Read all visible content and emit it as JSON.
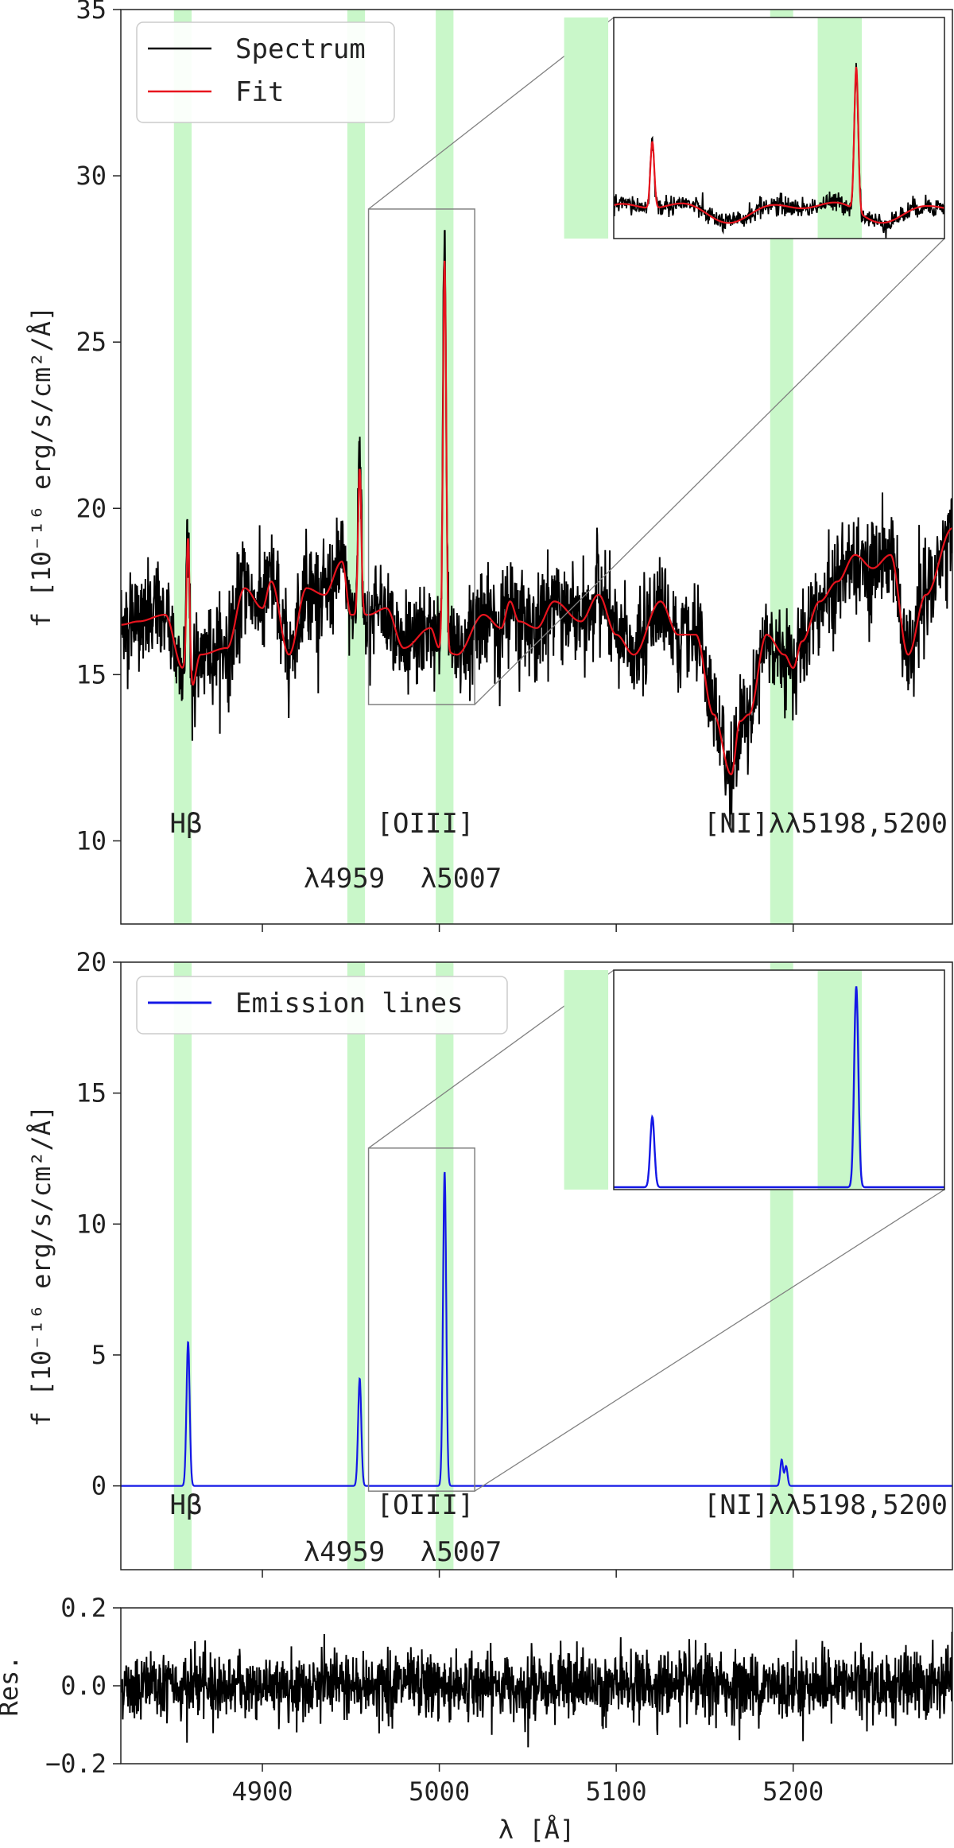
{
  "chart_data": [
    {
      "panel": "top",
      "type": "line",
      "ylabel": "f [10⁻¹⁶ erg/s/cm²/Å]",
      "ylim": [
        7.5,
        35
      ],
      "xlim": [
        4820,
        5290
      ],
      "yticks": [
        10,
        15,
        20,
        25,
        30,
        35
      ],
      "legend": {
        "placement": "top-left",
        "entries": [
          {
            "label": "Spectrum",
            "color": "#000000"
          },
          {
            "label": "Fit",
            "color": "#e8141e"
          }
        ]
      },
      "continuum_points": [
        [
          4820,
          16.5
        ],
        [
          4830,
          16.6
        ],
        [
          4845,
          16.8
        ],
        [
          4855,
          15.2
        ],
        [
          4860,
          14.6
        ],
        [
          4865,
          15.6
        ],
        [
          4880,
          15.8
        ],
        [
          4890,
          17.6
        ],
        [
          4900,
          17.0
        ],
        [
          4905,
          17.8
        ],
        [
          4915,
          15.6
        ],
        [
          4925,
          17.6
        ],
        [
          4935,
          17.4
        ],
        [
          4945,
          18.4
        ],
        [
          4950,
          16.8
        ],
        [
          4960,
          16.8
        ],
        [
          4970,
          17.0
        ],
        [
          4980,
          15.8
        ],
        [
          4995,
          16.4
        ],
        [
          5000,
          15.8
        ],
        [
          5010,
          15.6
        ],
        [
          5025,
          16.8
        ],
        [
          5035,
          16.4
        ],
        [
          5040,
          17.2
        ],
        [
          5045,
          16.6
        ],
        [
          5055,
          16.4
        ],
        [
          5065,
          17.2
        ],
        [
          5080,
          16.6
        ],
        [
          5090,
          17.4
        ],
        [
          5100,
          16.2
        ],
        [
          5110,
          15.6
        ],
        [
          5125,
          17.2
        ],
        [
          5135,
          16.2
        ],
        [
          5145,
          16.2
        ],
        [
          5155,
          13.8
        ],
        [
          5165,
          12.0
        ],
        [
          5170,
          13.6
        ],
        [
          5175,
          13.8
        ],
        [
          5185,
          16.2
        ],
        [
          5195,
          15.6
        ],
        [
          5200,
          15.2
        ],
        [
          5205,
          16.0
        ],
        [
          5215,
          17.2
        ],
        [
          5225,
          17.8
        ],
        [
          5235,
          18.6
        ],
        [
          5245,
          18.2
        ],
        [
          5255,
          18.6
        ],
        [
          5265,
          15.6
        ],
        [
          5275,
          17.4
        ],
        [
          5290,
          19.4
        ]
      ],
      "emission_lines": [
        {
          "name": "Hbeta",
          "center": 4858,
          "amplitude": 4.3,
          "sigma": 0.9
        },
        {
          "name": "OIII_4959",
          "center": 4955,
          "amplitude": 4.4,
          "sigma": 0.9
        },
        {
          "name": "OIII_5007",
          "center": 5003,
          "amplitude": 11.7,
          "sigma": 0.9
        }
      ],
      "shaded_bands": [
        [
          4850,
          4860
        ],
        [
          4948,
          4958
        ],
        [
          4998,
          5008
        ],
        [
          5187,
          5200
        ]
      ],
      "zoom_box": {
        "x": [
          4960,
          5020
        ],
        "y": [
          14.1,
          29.0
        ]
      },
      "inset": {
        "x": [
          4960,
          5020
        ],
        "y": [
          14.1,
          29.0
        ],
        "position": "top-right",
        "shaded_bands": [
          [
            4951,
            4959
          ],
          [
            4997,
            5005
          ]
        ]
      },
      "labels": {
        "hbeta": "Hβ",
        "oiii": "[OIII]",
        "oiii_4959": "λ4959",
        "oiii_5007": "λ5007",
        "ni": "[NI]λλ5198,5200"
      }
    },
    {
      "panel": "middle",
      "type": "line",
      "ylabel": "f [10⁻¹⁶ erg/s/cm²/Å]",
      "ylim": [
        -3.2,
        20
      ],
      "xlim": [
        4820,
        5290
      ],
      "yticks": [
        0,
        5,
        10,
        15,
        20
      ],
      "legend": {
        "placement": "top-left",
        "entries": [
          {
            "label": "Emission lines",
            "color": "#1418e6"
          }
        ]
      },
      "emission_lines": [
        {
          "name": "Hbeta",
          "center": 4858,
          "amplitude": 5.5,
          "sigma": 0.9
        },
        {
          "name": "OIII_4959",
          "center": 4955,
          "amplitude": 4.1,
          "sigma": 0.9
        },
        {
          "name": "OIII_5007",
          "center": 5003,
          "amplitude": 12.0,
          "sigma": 0.9
        },
        {
          "name": "NI_5198",
          "center": 5193.5,
          "amplitude": 1.0,
          "sigma": 0.8
        },
        {
          "name": "NI_5200",
          "center": 5196,
          "amplitude": 0.75,
          "sigma": 0.8
        }
      ],
      "shaded_bands": [
        [
          4850,
          4860
        ],
        [
          4948,
          4958
        ],
        [
          4998,
          5008
        ],
        [
          5187,
          5200
        ]
      ],
      "zoom_box": {
        "x": [
          4960,
          5020
        ],
        "y": [
          -0.2,
          12.9
        ]
      },
      "inset": {
        "x": [
          4960,
          5020
        ],
        "y": [
          -0.2,
          12.9
        ],
        "position": "top-right",
        "shaded_bands": [
          [
            4951,
            4959
          ],
          [
            4997,
            5005
          ]
        ]
      },
      "labels": {
        "hbeta": "Hβ",
        "oiii": "[OIII]",
        "oiii_4959": "λ4959",
        "oiii_5007": "λ5007",
        "ni": "[NI]λλ5198,5200"
      }
    },
    {
      "panel": "bottom",
      "type": "line",
      "ylabel": "Res.",
      "xlabel": "λ [Å]",
      "ylim": [
        -0.2,
        0.2
      ],
      "xlim": [
        4820,
        5290
      ],
      "yticks": [
        -0.2,
        0.0,
        0.2
      ],
      "ytick_labels": [
        "−0.2",
        "0.0",
        "0.2"
      ],
      "xticks": [
        4900,
        5000,
        5100,
        5200
      ],
      "residual_std": 0.04
    }
  ],
  "colors": {
    "spectrum": "#000000",
    "fit": "#e8141e",
    "emission": "#1418e6",
    "band": "#c9f7c9",
    "zoom_line": "#808080"
  }
}
